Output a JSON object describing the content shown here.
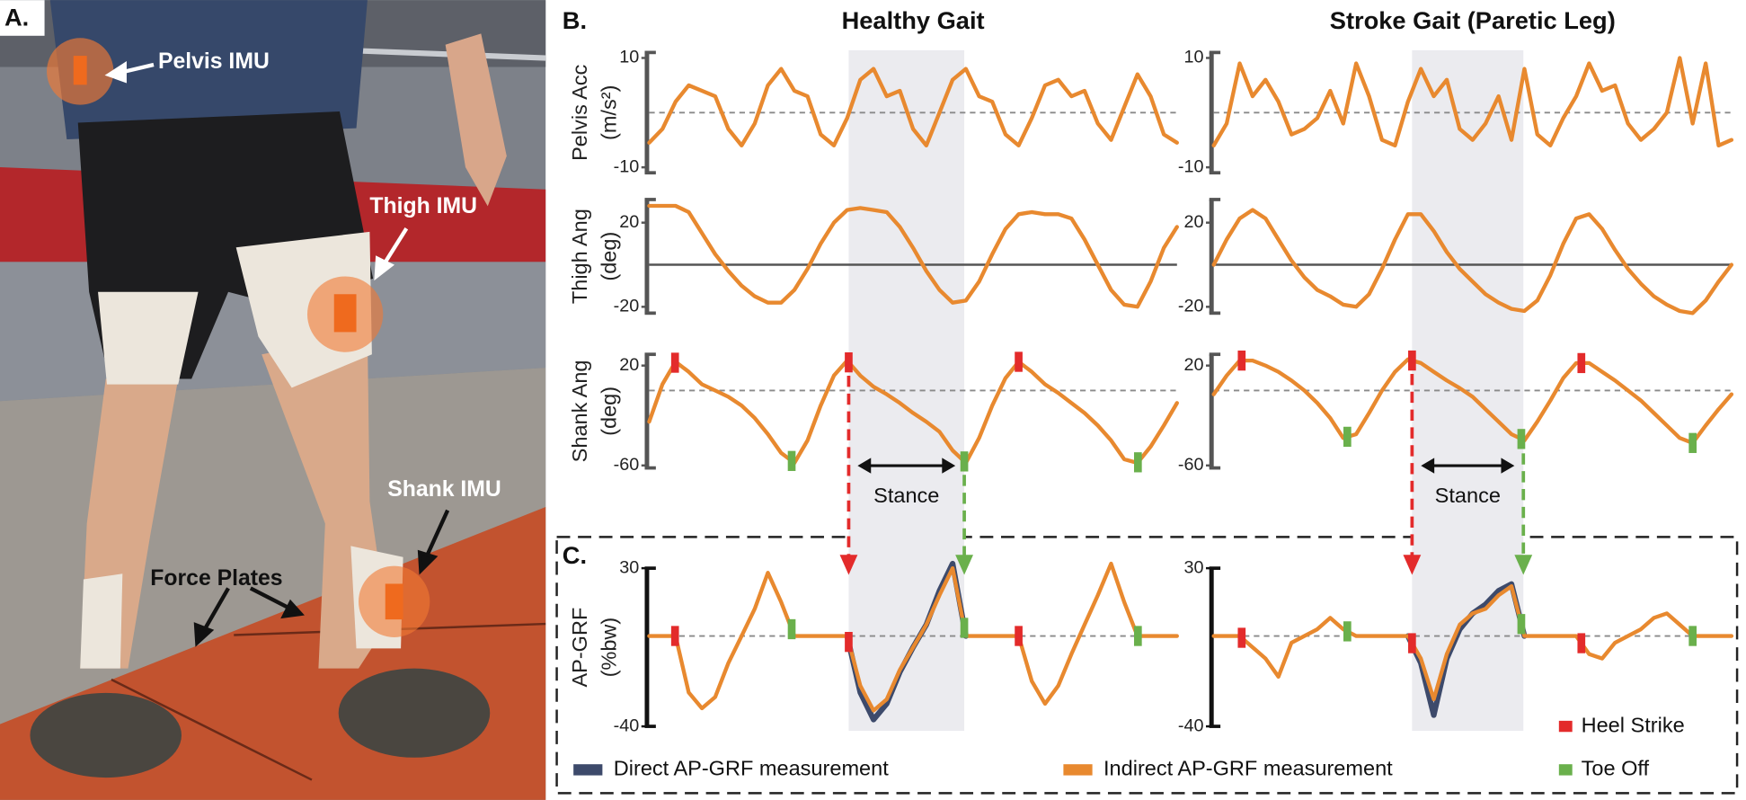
{
  "panel_labels": [
    "A.",
    "B.",
    "C."
  ],
  "photo_labels": [
    "Pelvis IMU",
    "Thigh IMU",
    "Shank IMU",
    "Force Plates"
  ],
  "chart_data": [
    {
      "type": "line",
      "title": "Healthy Gait",
      "ylabel": [
        "Pelvis Acc",
        "(m/s²)"
      ],
      "x": [
        0,
        2.5,
        5,
        7.5,
        10,
        12.5,
        15,
        17.5,
        20,
        22.5,
        25,
        27.5,
        30,
        32.5,
        35,
        37.5,
        40,
        42.5,
        45,
        47.5,
        50,
        52.5,
        55,
        57.5,
        60,
        62.5,
        65,
        67.5,
        70,
        72.5,
        75,
        77.5,
        80,
        82.5,
        85,
        87.5,
        90,
        92.5,
        95,
        97.5,
        100
      ],
      "xlim": [
        0,
        100
      ],
      "ylim": [
        -11,
        11
      ],
      "yticks": [
        10,
        -10
      ],
      "hline": 0,
      "hline_style": "dashed",
      "series": [
        {
          "color": "#e8892f",
          "values": [
            -5.5,
            -3,
            2,
            5,
            4,
            3,
            -3,
            -6,
            -2,
            5,
            8,
            4,
            3,
            -4,
            -6,
            -1,
            6,
            8,
            3,
            4,
            -3,
            -6,
            0,
            6,
            8,
            3,
            2,
            -4,
            -6,
            -1,
            5,
            6,
            3,
            4,
            -2,
            -5,
            1,
            7,
            3,
            -4,
            -5.5
          ]
        }
      ]
    },
    {
      "type": "line",
      "title": "Stroke Gait (Paretic Leg)",
      "x": [
        0,
        2.5,
        5,
        7.5,
        10,
        12.5,
        15,
        17.5,
        20,
        22.5,
        25,
        27.5,
        30,
        32.5,
        35,
        37.5,
        40,
        42.5,
        45,
        47.5,
        50,
        52.5,
        55,
        57.5,
        60,
        62.5,
        65,
        67.5,
        70,
        72.5,
        75,
        77.5,
        80,
        82.5,
        85,
        87.5,
        90,
        92.5,
        95,
        97.5,
        100
      ],
      "xlim": [
        0,
        100
      ],
      "ylim": [
        -11,
        11
      ],
      "yticks": [
        10,
        -10
      ],
      "hline": 0,
      "hline_style": "dashed",
      "series": [
        {
          "color": "#e8892f",
          "values": [
            -6,
            -2,
            9,
            3,
            6,
            2,
            -4,
            -3,
            -1,
            4,
            -2,
            9,
            3,
            -5,
            -6,
            2,
            8,
            3,
            6,
            -3,
            -5,
            -2,
            3,
            -5,
            8,
            -4,
            -6,
            -1,
            3,
            9,
            4,
            5,
            -2,
            -5,
            -3,
            0,
            10,
            -2,
            9,
            -6,
            -5
          ]
        }
      ]
    },
    {
      "type": "line",
      "ylabel": [
        "Thigh Ang",
        "(deg)"
      ],
      "x": [
        0,
        2.5,
        5,
        7.5,
        10,
        12.5,
        15,
        17.5,
        20,
        22.5,
        25,
        27.5,
        30,
        32.5,
        35,
        37.5,
        40,
        42.5,
        45,
        47.5,
        50,
        52.5,
        55,
        57.5,
        60,
        62.5,
        65,
        67.5,
        70,
        72.5,
        75,
        77.5,
        80,
        82.5,
        85,
        87.5,
        90,
        92.5,
        95,
        97.5,
        100
      ],
      "xlim": [
        0,
        100
      ],
      "ylim": [
        -23,
        31
      ],
      "yticks": [
        20,
        -20
      ],
      "hline": 0,
      "hline_style": "solid",
      "series": [
        {
          "color": "#e8892f",
          "values": [
            28,
            28,
            28,
            25,
            15,
            5,
            -3,
            -10,
            -15,
            -18,
            -18,
            -12,
            -2,
            10,
            20,
            26,
            27,
            26,
            25,
            18,
            8,
            -3,
            -12,
            -18,
            -17,
            -8,
            5,
            17,
            24,
            25,
            24,
            24,
            22,
            12,
            0,
            -12,
            -19,
            -20,
            -8,
            8,
            18
          ]
        }
      ]
    },
    {
      "type": "line",
      "x": [
        0,
        2.5,
        5,
        7.5,
        10,
        12.5,
        15,
        17.5,
        20,
        22.5,
        25,
        27.5,
        30,
        32.5,
        35,
        37.5,
        40,
        42.5,
        45,
        47.5,
        50,
        52.5,
        55,
        57.5,
        60,
        62.5,
        65,
        67.5,
        70,
        72.5,
        75,
        77.5,
        80,
        82.5,
        85,
        87.5,
        90,
        92.5,
        95,
        97.5,
        100
      ],
      "xlim": [
        0,
        100
      ],
      "ylim": [
        -23,
        31
      ],
      "yticks": [
        20,
        -20
      ],
      "hline": 0,
      "hline_style": "solid",
      "series": [
        {
          "color": "#e8892f",
          "values": [
            0,
            12,
            22,
            26,
            22,
            12,
            2,
            -6,
            -12,
            -15,
            -19,
            -20,
            -14,
            -2,
            12,
            24,
            24,
            16,
            6,
            -2,
            -8,
            -14,
            -18,
            -21,
            -22,
            -17,
            -5,
            10,
            22,
            24,
            17,
            7,
            -2,
            -9,
            -15,
            -19,
            -22,
            -23,
            -17,
            -8,
            0
          ]
        }
      ]
    },
    {
      "type": "line",
      "ylabel": [
        "Shank Ang",
        "(deg)"
      ],
      "x": [
        0,
        2.5,
        5,
        7.5,
        10,
        12.5,
        15,
        17.5,
        20,
        22.5,
        25,
        27.5,
        30,
        32.5,
        35,
        37.5,
        40,
        42.5,
        45,
        47.5,
        50,
        52.5,
        55,
        57.5,
        60,
        62.5,
        65,
        67.5,
        70,
        72.5,
        75,
        77.5,
        80,
        82.5,
        85,
        87.5,
        90,
        92.5,
        95,
        97.5,
        100
      ],
      "xlim": [
        0,
        100
      ],
      "ylim": [
        -62,
        29
      ],
      "yticks": [
        20,
        -60
      ],
      "hline": 0,
      "hline_style": "dashed",
      "series": [
        {
          "color": "#e8892f",
          "values": [
            -25,
            5,
            23,
            15,
            5,
            0,
            -5,
            -12,
            -22,
            -35,
            -50,
            -58,
            -40,
            -12,
            12,
            24,
            12,
            3,
            -3,
            -10,
            -18,
            -25,
            -33,
            -48,
            -58,
            -38,
            -12,
            10,
            23,
            15,
            5,
            -2,
            -10,
            -18,
            -28,
            -40,
            -55,
            -58,
            -45,
            -28,
            -10
          ]
        }
      ],
      "events": [
        {
          "color": "#e32b2b",
          "x": [
            4.9,
            37.8,
            70
          ]
        },
        {
          "color": "#6ab04c",
          "x": [
            27,
            59.7,
            92.6
          ]
        }
      ],
      "stance": {
        "label": "Stance",
        "x": [
          37.8,
          59.7
        ]
      }
    },
    {
      "type": "line",
      "x": [
        0,
        2.5,
        5,
        7.5,
        10,
        12.5,
        15,
        17.5,
        20,
        22.5,
        25,
        27.5,
        30,
        32.5,
        35,
        37.5,
        40,
        42.5,
        45,
        47.5,
        50,
        52.5,
        55,
        57.5,
        60,
        62.5,
        65,
        67.5,
        70,
        72.5,
        75,
        77.5,
        80,
        82.5,
        85,
        87.5,
        90,
        92.5,
        95,
        97.5,
        100
      ],
      "xlim": [
        0,
        100
      ],
      "ylim": [
        -62,
        29
      ],
      "yticks": [
        20,
        -60
      ],
      "hline": 0,
      "hline_style": "dashed",
      "series": [
        {
          "color": "#e8892f",
          "values": [
            -3,
            12,
            24,
            24,
            20,
            15,
            8,
            0,
            -10,
            -22,
            -38,
            -35,
            -18,
            0,
            15,
            25,
            22,
            15,
            8,
            2,
            -5,
            -15,
            -25,
            -35,
            -40,
            -25,
            -8,
            10,
            22,
            22,
            15,
            8,
            0,
            -8,
            -18,
            -28,
            -38,
            -42,
            -28,
            -15,
            -3
          ]
        }
      ],
      "events": [
        {
          "color": "#e32b2b",
          "x": [
            5.4,
            38.3,
            71
          ]
        },
        {
          "color": "#6ab04c",
          "x": [
            25.8,
            59.4,
            92.5
          ]
        }
      ],
      "stance": {
        "label": "Stance",
        "x": [
          38.3,
          59.8
        ]
      }
    },
    {
      "type": "line",
      "ylabel": [
        "AP-GRF",
        "(%bw)"
      ],
      "x": [
        0,
        2.5,
        5,
        7.5,
        10,
        12.5,
        15,
        17.5,
        20,
        22.5,
        25,
        27.5,
        30,
        32.5,
        35,
        37.5,
        40,
        42.5,
        45,
        47.5,
        50,
        52.5,
        55,
        57.5,
        60,
        62.5,
        65,
        67.5,
        70,
        72.5,
        75,
        77.5,
        80,
        82.5,
        85,
        87.5,
        90,
        92.5,
        95,
        97.5,
        100
      ],
      "xlim": [
        0,
        100
      ],
      "ylim": [
        -40,
        30
      ],
      "yticks": [
        30,
        -40
      ],
      "hline": 0,
      "hline_style": "dashed",
      "series": [
        {
          "name": "Direct AP-GRF measurement",
          "color": "#3d4a6b",
          "values": [
            null,
            null,
            null,
            null,
            null,
            null,
            null,
            null,
            null,
            null,
            null,
            null,
            null,
            null,
            null,
            0,
            -25,
            -37,
            -30,
            -16,
            -5,
            5,
            20,
            32,
            0,
            null,
            null,
            null,
            null,
            null,
            null,
            null,
            null,
            null,
            null,
            null,
            null,
            null,
            null,
            null,
            null
          ]
        },
        {
          "name": "Indirect AP-GRF measurement",
          "color": "#e8892f",
          "values": [
            0,
            0,
            0,
            -25,
            -32,
            -27,
            -12,
            0,
            12,
            28,
            15,
            0,
            0,
            0,
            0,
            0,
            -22,
            -33,
            -28,
            -15,
            -5,
            5,
            18,
            30,
            0,
            0,
            0,
            0,
            0,
            -20,
            -30,
            -22,
            -8,
            5,
            18,
            32,
            15,
            0,
            0,
            0,
            0
          ]
        }
      ],
      "events": [
        {
          "name": "Heel Strike",
          "color": "#e32b2b",
          "x": [
            4.9,
            37.8,
            70
          ]
        },
        {
          "name": "Toe Off",
          "color": "#6ab04c",
          "x": [
            27,
            59.7,
            92.6
          ]
        }
      ]
    },
    {
      "type": "line",
      "x": [
        0,
        2.5,
        5,
        7.5,
        10,
        12.5,
        15,
        17.5,
        20,
        22.5,
        25,
        27.5,
        30,
        32.5,
        35,
        37.5,
        40,
        42.5,
        45,
        47.5,
        50,
        52.5,
        55,
        57.5,
        60,
        62.5,
        65,
        67.5,
        70,
        72.5,
        75,
        77.5,
        80,
        82.5,
        85,
        87.5,
        90,
        92.5,
        95,
        97.5,
        100
      ],
      "xlim": [
        0,
        100
      ],
      "ylim": [
        -40,
        30
      ],
      "yticks": [
        30,
        -40
      ],
      "hline": 0,
      "hline_style": "dashed",
      "series": [
        {
          "color": "#3d4a6b",
          "values": [
            null,
            null,
            null,
            null,
            null,
            null,
            null,
            null,
            null,
            null,
            null,
            null,
            null,
            null,
            null,
            0,
            -12,
            -35,
            -10,
            3,
            10,
            14,
            20,
            23,
            0,
            null,
            null,
            null,
            null,
            null,
            null,
            null,
            null,
            null,
            null,
            null,
            null,
            null,
            null,
            null,
            null
          ]
        },
        {
          "color": "#e8892f",
          "values": [
            0,
            0,
            0,
            -5,
            -10,
            -18,
            -3,
            0,
            3,
            8,
            3,
            0,
            0,
            0,
            0,
            0,
            -10,
            -28,
            -8,
            5,
            10,
            12,
            18,
            22,
            0,
            0,
            0,
            0,
            0,
            -8,
            -10,
            -3,
            0,
            3,
            8,
            10,
            5,
            0,
            0,
            0,
            0
          ]
        }
      ],
      "events": [
        {
          "color": "#e32b2b",
          "x": [
            5.4,
            38.3,
            71
          ]
        },
        {
          "color": "#6ab04c",
          "x": [
            25.8,
            59.4,
            92.5
          ]
        }
      ]
    }
  ]
}
